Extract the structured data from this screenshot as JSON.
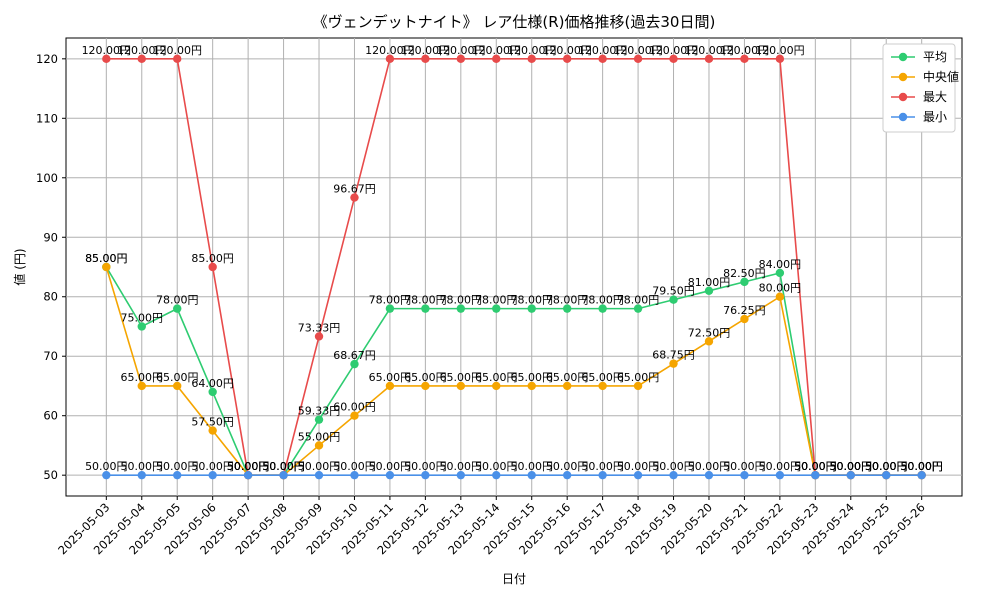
{
  "chart_data": {
    "type": "line",
    "title": "《ヴェンデットナイト》 レア仕様(R)価格推移(過去30日間)",
    "xlabel": "日付",
    "ylabel": "値 (円)",
    "ylim": [
      46.5,
      123.5
    ],
    "yticks": [
      50,
      60,
      70,
      80,
      90,
      100,
      110,
      120
    ],
    "grid": true,
    "legend_position": "top-right",
    "value_suffix": "円",
    "x": [
      "2025-05-03",
      "2025-05-04",
      "2025-05-05",
      "2025-05-06",
      "2025-05-07",
      "2025-05-08",
      "2025-05-09",
      "2025-05-10",
      "2025-05-11",
      "2025-05-12",
      "2025-05-13",
      "2025-05-14",
      "2025-05-15",
      "2025-05-16",
      "2025-05-17",
      "2025-05-18",
      "2025-05-19",
      "2025-05-20",
      "2025-05-21",
      "2025-05-22",
      "2025-05-23",
      "2025-05-24",
      "2025-05-25",
      "2025-05-26"
    ],
    "series": [
      {
        "name": "平均",
        "color": "#2ecc71",
        "labels_above": true,
        "values": [
          85,
          75,
          78,
          64,
          50,
          50,
          59.33,
          68.67,
          78,
          78,
          78,
          78,
          78,
          78,
          78,
          78,
          79.5,
          81,
          82.5,
          84,
          50,
          50,
          50,
          50
        ]
      },
      {
        "name": "中央値",
        "color": "#f5a500",
        "labels_above": true,
        "values": [
          85,
          65,
          65,
          57.5,
          50,
          50,
          55,
          60,
          65,
          65,
          65,
          65,
          65,
          65,
          65,
          65,
          68.75,
          72.5,
          76.25,
          80,
          50,
          50,
          50,
          50
        ]
      },
      {
        "name": "最大",
        "color": "#e84b4b",
        "labels_above": true,
        "values": [
          120,
          120,
          120,
          85,
          50,
          50,
          73.33,
          96.67,
          120,
          120,
          120,
          120,
          120,
          120,
          120,
          120,
          120,
          120,
          120,
          120,
          50,
          50,
          50,
          50
        ]
      },
      {
        "name": "最小",
        "color": "#4a90e8",
        "labels_above": true,
        "values": [
          50,
          50,
          50,
          50,
          50,
          50,
          50,
          50,
          50,
          50,
          50,
          50,
          50,
          50,
          50,
          50,
          50,
          50,
          50,
          50,
          50,
          50,
          50,
          50
        ]
      }
    ]
  }
}
